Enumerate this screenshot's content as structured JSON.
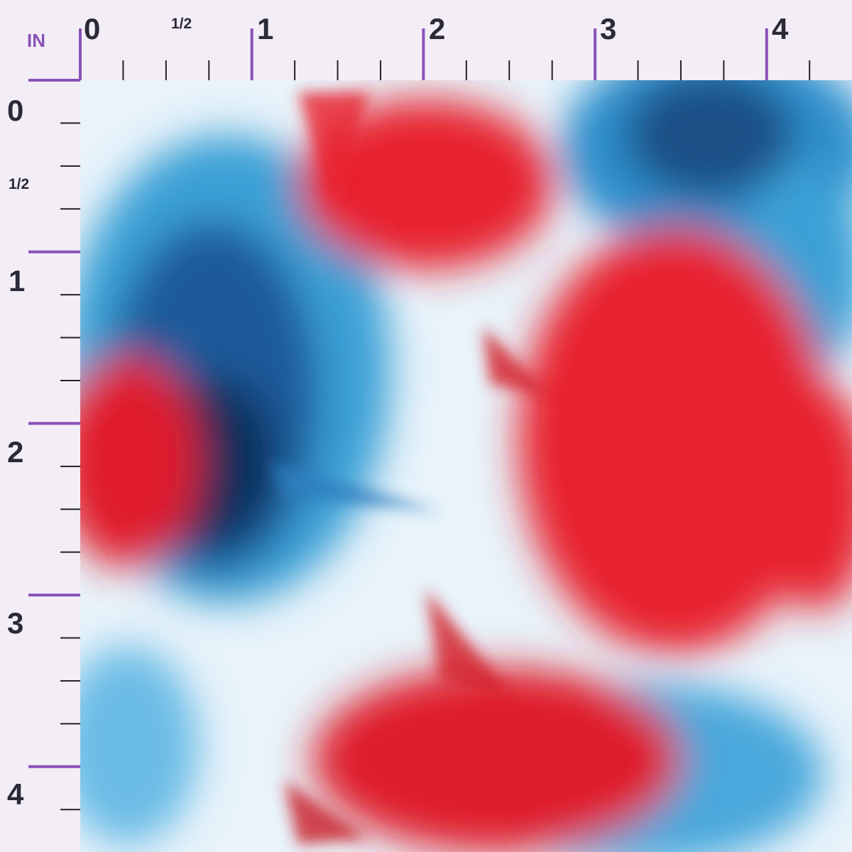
{
  "ruler": {
    "unit": "IN",
    "top_labels": [
      "0",
      "1/2",
      "1",
      "2",
      "3",
      "4"
    ],
    "left_labels": [
      "0",
      "1/2",
      "1",
      "2",
      "3",
      "4"
    ]
  }
}
